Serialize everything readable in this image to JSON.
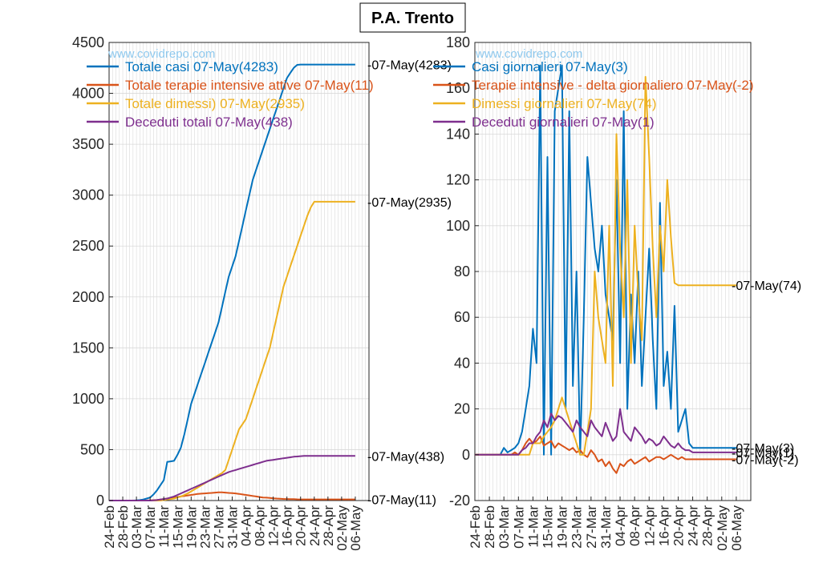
{
  "title": "P.A. Trento",
  "watermark": "www.covidrepo.com",
  "x_tick_labels": [
    "24-Feb",
    "28-Feb",
    "03-Mar",
    "07-Mar",
    "11-Mar",
    "15-Mar",
    "19-Mar",
    "23-Mar",
    "27-Mar",
    "31-Mar",
    "04-Apr",
    "08-Apr",
    "12-Apr",
    "16-Apr",
    "20-Apr",
    "24-Apr",
    "28-Apr",
    "02-May",
    "06-May"
  ],
  "colors": {
    "blue": "#0072bd",
    "orange": "#d95319",
    "yellow": "#edb120",
    "purple": "#7e2f8e"
  },
  "chart_data": [
    {
      "type": "line",
      "x_start": "24-Feb",
      "x_end": "07-May",
      "ylim": [
        0,
        4500
      ],
      "yticks": [
        0,
        500,
        1000,
        1500,
        2000,
        2500,
        3000,
        3500,
        4000,
        4500
      ],
      "legend_position": "top-left",
      "grid": true,
      "series": [
        {
          "name": "Totale casi 07-May(4283)",
          "color": "#0072bd",
          "end_label": "-07-May(4283)",
          "values": [
            0,
            0,
            0,
            0,
            0,
            0,
            0,
            0,
            2,
            5,
            10,
            20,
            30,
            60,
            100,
            150,
            200,
            380,
            385,
            390,
            450,
            520,
            650,
            800,
            950,
            1050,
            1150,
            1250,
            1350,
            1450,
            1550,
            1650,
            1750,
            1900,
            2050,
            2200,
            2300,
            2400,
            2550,
            2700,
            2850,
            3000,
            3150,
            3250,
            3350,
            3450,
            3550,
            3650,
            3750,
            3850,
            3950,
            4050,
            4150,
            4200,
            4250,
            4280,
            4283,
            4283,
            4283,
            4283,
            4283,
            4283,
            4283,
            4283,
            4283,
            4283,
            4283,
            4283,
            4283,
            4283,
            4283,
            4283,
            4283
          ]
        },
        {
          "name": "Totale terapie intensive attive 07-May(11)",
          "color": "#d95319",
          "end_label": "-07-May(11)",
          "values": [
            0,
            0,
            0,
            0,
            0,
            0,
            0,
            0,
            0,
            0,
            0,
            1,
            2,
            4,
            6,
            10,
            15,
            20,
            25,
            30,
            35,
            40,
            45,
            50,
            55,
            60,
            65,
            68,
            70,
            72,
            75,
            78,
            80,
            80,
            78,
            75,
            72,
            70,
            65,
            60,
            55,
            50,
            45,
            40,
            35,
            30,
            28,
            25,
            22,
            20,
            18,
            16,
            15,
            14,
            13,
            12,
            11,
            11,
            11,
            11,
            11,
            11,
            11,
            11,
            11,
            11,
            11,
            11,
            11,
            11,
            11,
            11,
            11
          ]
        },
        {
          "name": "Totale dimessi) 07-May(2935)",
          "color": "#edb120",
          "end_label": "-07-May(2935)",
          "values": [
            0,
            0,
            0,
            0,
            0,
            0,
            0,
            0,
            0,
            0,
            0,
            0,
            0,
            0,
            0,
            0,
            5,
            10,
            15,
            20,
            30,
            40,
            55,
            70,
            90,
            110,
            130,
            150,
            170,
            190,
            210,
            230,
            250,
            270,
            300,
            400,
            500,
            600,
            700,
            750,
            800,
            900,
            1000,
            1100,
            1200,
            1300,
            1400,
            1500,
            1650,
            1800,
            1950,
            2100,
            2200,
            2300,
            2400,
            2500,
            2600,
            2700,
            2800,
            2880,
            2935,
            2935,
            2935,
            2935,
            2935,
            2935,
            2935,
            2935,
            2935,
            2935,
            2935,
            2935,
            2935
          ]
        },
        {
          "name": "Deceduti totali 07-May(438)",
          "color": "#7e2f8e",
          "end_label": "-07-May(438)",
          "values": [
            0,
            0,
            0,
            0,
            0,
            0,
            0,
            0,
            0,
            0,
            0,
            0,
            0,
            2,
            5,
            10,
            15,
            20,
            30,
            40,
            55,
            70,
            85,
            100,
            115,
            130,
            145,
            160,
            175,
            190,
            205,
            220,
            235,
            250,
            265,
            280,
            290,
            300,
            310,
            320,
            330,
            340,
            350,
            360,
            370,
            380,
            390,
            395,
            400,
            405,
            410,
            415,
            420,
            425,
            430,
            433,
            436,
            438,
            438,
            438,
            438,
            438,
            438,
            438,
            438,
            438,
            438,
            438,
            438,
            438,
            438,
            438,
            438
          ]
        }
      ]
    },
    {
      "type": "line",
      "x_start": "24-Feb",
      "x_end": "07-May",
      "ylim": [
        -20,
        180
      ],
      "yticks": [
        -20,
        0,
        20,
        40,
        60,
        80,
        100,
        120,
        140,
        160,
        180
      ],
      "legend_position": "top-left",
      "grid": true,
      "series": [
        {
          "name": "Casi giornalieri 07-May(3)",
          "color": "#0072bd",
          "end_label": "-07-May(3)",
          "values": [
            0,
            0,
            0,
            0,
            0,
            0,
            0,
            0,
            3,
            1,
            2,
            3,
            5,
            10,
            20,
            30,
            55,
            40,
            170,
            0,
            130,
            0,
            150,
            160,
            170,
            20,
            150,
            30,
            80,
            0,
            60,
            130,
            110,
            90,
            80,
            100,
            70,
            60,
            50,
            120,
            40,
            150,
            20,
            70,
            40,
            80,
            30,
            60,
            90,
            50,
            20,
            110,
            30,
            45,
            20,
            65,
            10,
            15,
            20,
            5,
            3,
            3,
            3,
            3,
            3,
            3,
            3,
            3,
            3,
            3,
            3,
            3,
            3
          ]
        },
        {
          "name": "Terapie intensive - delta giornaliero 07-May(-2)",
          "color": "#d95319",
          "end_label": "-07-May(-2)",
          "values": [
            0,
            0,
            0,
            0,
            0,
            0,
            0,
            0,
            0,
            0,
            0,
            1,
            0,
            2,
            5,
            7,
            5,
            6,
            8,
            4,
            5,
            6,
            3,
            5,
            4,
            3,
            2,
            3,
            1,
            2,
            0,
            -1,
            2,
            0,
            -3,
            -2,
            -5,
            -3,
            -6,
            -8,
            -4,
            -5,
            -3,
            -2,
            -4,
            -3,
            -2,
            -1,
            -3,
            -2,
            -1,
            -1,
            -2,
            -1,
            0,
            -1,
            -2,
            -1,
            -2,
            -2,
            -2,
            -2,
            -2,
            -2,
            -2,
            -2,
            -2,
            -2,
            -2,
            -2,
            -2,
            -2,
            -2
          ]
        },
        {
          "name": "Dimessi giornalieri 07-May(74)",
          "color": "#edb120",
          "end_label": "-07-May(74)",
          "values": [
            0,
            0,
            0,
            0,
            0,
            0,
            0,
            0,
            0,
            0,
            0,
            0,
            0,
            0,
            0,
            0,
            5,
            5,
            5,
            8,
            10,
            12,
            15,
            20,
            25,
            20,
            15,
            10,
            5,
            0,
            0,
            10,
            20,
            80,
            60,
            50,
            40,
            100,
            30,
            140,
            90,
            60,
            120,
            40,
            100,
            70,
            50,
            165,
            130,
            90,
            60,
            100,
            80,
            120,
            95,
            75,
            74,
            74,
            74,
            74,
            74,
            74,
            74,
            74,
            74,
            74,
            74,
            74,
            74,
            74,
            74,
            74,
            74
          ]
        },
        {
          "name": "Deceduti giornalieri 07-May(1)",
          "color": "#7e2f8e",
          "end_label": "-07-May(1)",
          "values": [
            0,
            0,
            0,
            0,
            0,
            0,
            0,
            0,
            0,
            0,
            0,
            0,
            0,
            2,
            3,
            5,
            5,
            8,
            10,
            15,
            12,
            18,
            15,
            17,
            16,
            14,
            12,
            10,
            15,
            12,
            10,
            8,
            15,
            12,
            10,
            8,
            14,
            10,
            6,
            8,
            20,
            10,
            8,
            6,
            12,
            10,
            8,
            5,
            7,
            6,
            4,
            5,
            8,
            6,
            4,
            3,
            5,
            3,
            2,
            2,
            1,
            1,
            1,
            1,
            1,
            1,
            1,
            1,
            1,
            1,
            1,
            1,
            1
          ]
        }
      ]
    }
  ]
}
